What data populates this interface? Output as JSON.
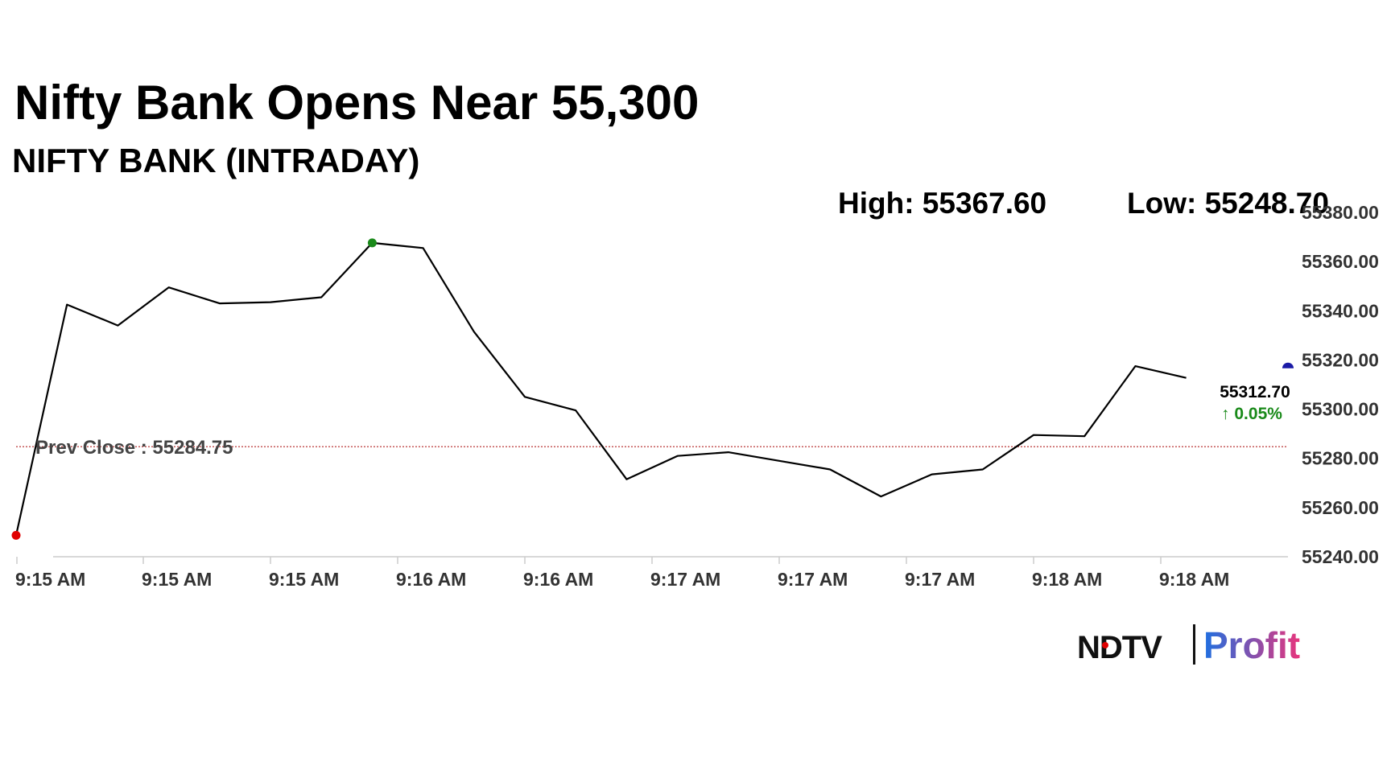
{
  "headline": "Nifty Bank Opens Near 55,300",
  "subtitle": "NIFTY BANK (INTRADAY)",
  "stats": {
    "high": "High: 55367.60",
    "low": "Low: 55248.70"
  },
  "prev_close_label": "Prev Close : 55284.75",
  "last": {
    "price": "55312.70",
    "change": "↑ 0.05%"
  },
  "brand": {
    "left": "NDTV",
    "right": "Profit"
  },
  "colors": {
    "line": "#000000",
    "prev_close": "#b22222",
    "high_marker": "#1a8a1a",
    "low_marker": "#e00000",
    "last_marker": "#1a1aa6",
    "change_up": "#1a8a1a",
    "brand_right_start": "#1e6fe0",
    "brand_right_end": "#e8357c",
    "brand_dot": "#e00000"
  },
  "chart_data": {
    "type": "line",
    "series": [
      {
        "values": [
          55248.7,
          55342.5,
          55334.0,
          55349.5,
          55343.0,
          55343.5,
          55345.5,
          55367.6,
          55365.5,
          55331.5,
          55305.0,
          55299.5,
          55271.5,
          55281.0,
          55282.5,
          55279.0,
          55275.5,
          55264.5,
          55273.5,
          55275.5,
          55289.5,
          55289.0,
          55317.5,
          55312.7
        ]
      }
    ],
    "x_tick_labels": [
      "9:15 AM",
      "9:15 AM",
      "9:15 AM",
      "9:16 AM",
      "9:16 AM",
      "9:17 AM",
      "9:17 AM",
      "9:17 AM",
      "9:18 AM",
      "9:18 AM"
    ],
    "y_ticks": [
      55240,
      55260,
      55280,
      55300,
      55320,
      55340,
      55360,
      55380
    ],
    "ylim": [
      55240,
      55380
    ],
    "reference_line": 55284.75,
    "high": 55367.6,
    "low": 55248.7,
    "last": 55312.7
  }
}
